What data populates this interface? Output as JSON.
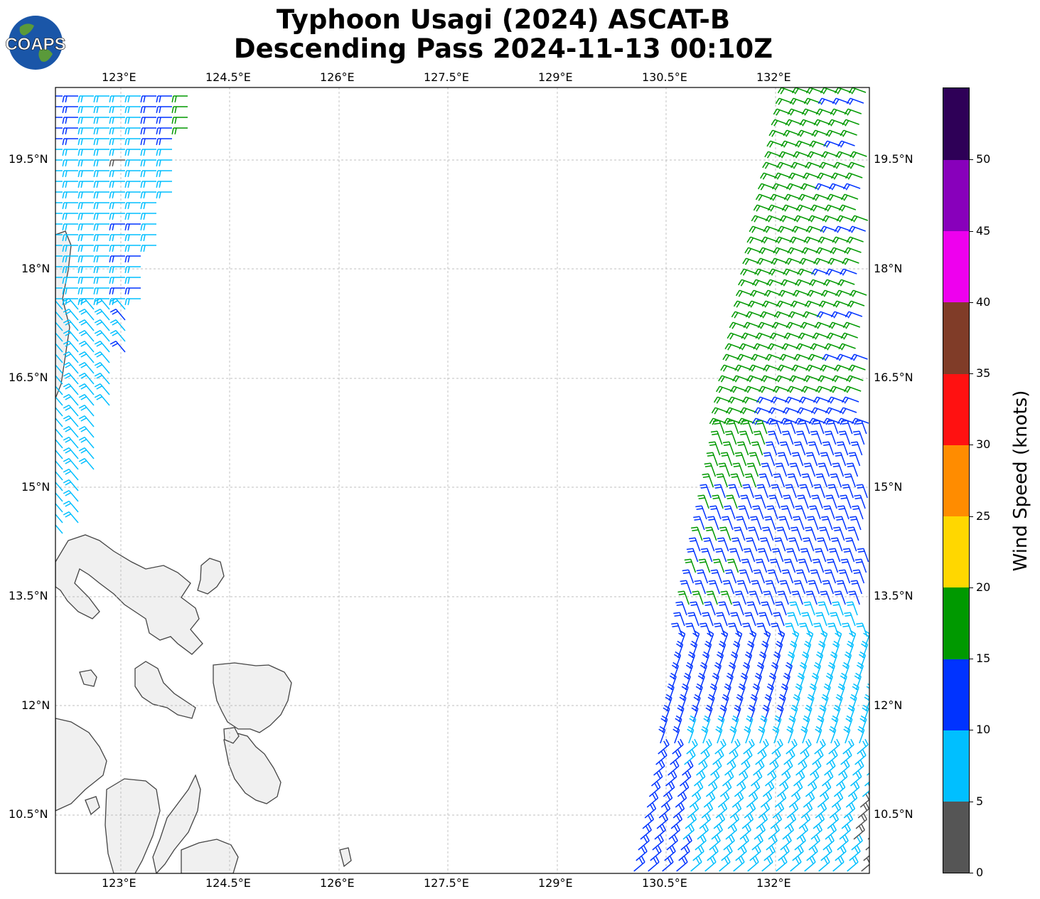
{
  "title_line1": "Typhoon Usagi (2024) ASCAT-B",
  "title_line2": "Descending Pass 2024-11-13 00:10Z",
  "logo_text": "COAPS",
  "map": {
    "lon_labels": [
      "123°E",
      "124.5°E",
      "126°E",
      "127.5°E",
      "129°E",
      "130.5°E",
      "132°E"
    ],
    "lat_labels": [
      "19.5°N",
      "18°N",
      "16.5°N",
      "15°N",
      "13.5°N",
      "12°N",
      "10.5°N"
    ],
    "land_color": "#f0f0f0",
    "coast_color": "#444444",
    "grid": "dashed"
  },
  "colorbar": {
    "label": "Wind Speed (knots)",
    "ticks": [
      "0",
      "5",
      "10",
      "15",
      "20",
      "25",
      "30",
      "35",
      "40",
      "45",
      "50"
    ],
    "colors": [
      "#555555",
      "#00bfff",
      "#0033ff",
      "#009900",
      "#ffd700",
      "#ff8c00",
      "#ff1111",
      "#803c28",
      "#ee00ee",
      "#8800bb",
      "#2e0057"
    ]
  },
  "legend_colors": {
    "calm": "#555555",
    "light": "#00bfff",
    "moderate": "#0033ff",
    "fresh": "#009900"
  }
}
